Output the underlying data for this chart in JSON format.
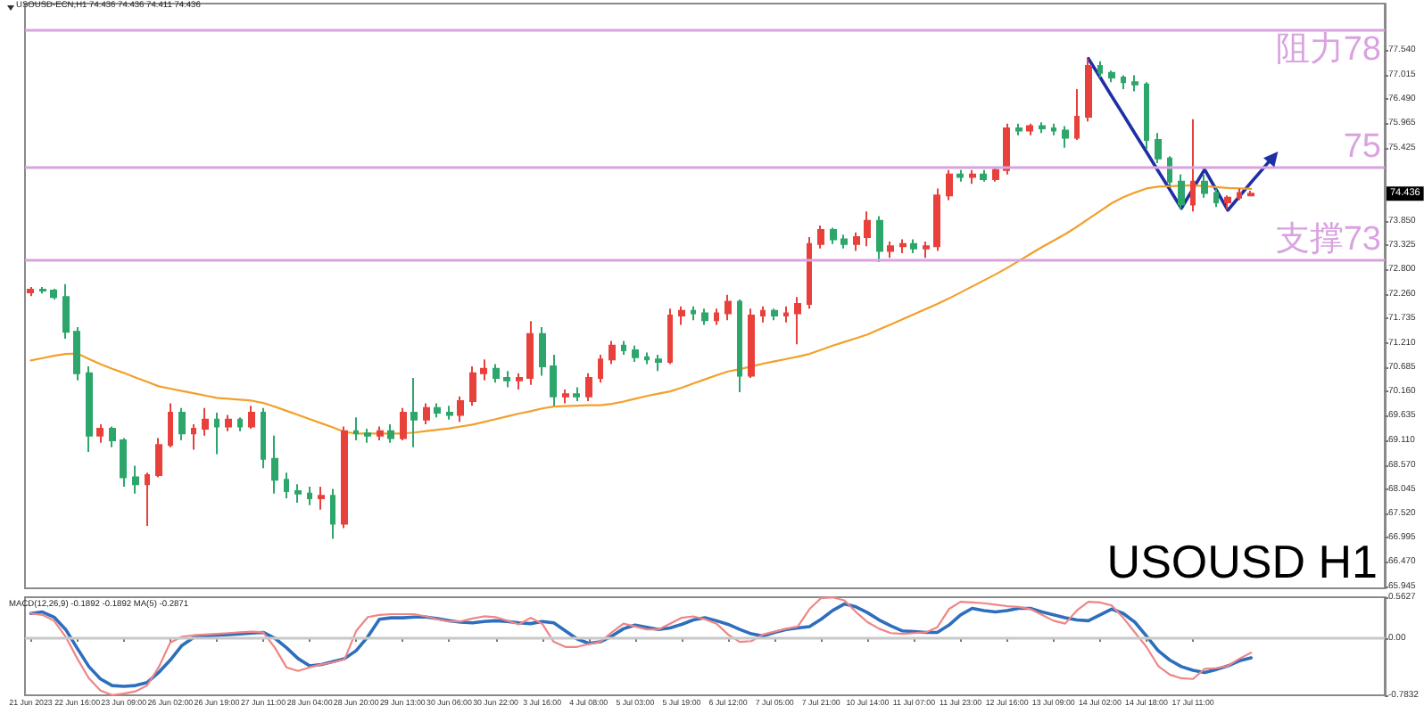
{
  "chart_data": [
    {
      "type": "candlestick",
      "title": "USOUSD H1",
      "subtitle": "USOUSD-ECN,H1 74.436 74.436 74.411 74.436",
      "categories": [
        null,
        null,
        null,
        null,
        null,
        null,
        null,
        null,
        null,
        null,
        null,
        null,
        null,
        null,
        null,
        null,
        null,
        null,
        null,
        null,
        null,
        null,
        null,
        null,
        null,
        null,
        null,
        null,
        null,
        null,
        null,
        null,
        null,
        null,
        null,
        null,
        null,
        null,
        null,
        null,
        null,
        null,
        null,
        null,
        null,
        null,
        null,
        null,
        null,
        null,
        null,
        null,
        null,
        null,
        null,
        null,
        null,
        null,
        null,
        null,
        null,
        null,
        null,
        null,
        null,
        null,
        null,
        null,
        null,
        null,
        null,
        null,
        null,
        null,
        null,
        null,
        null,
        null,
        null,
        null,
        null,
        null,
        null,
        null,
        null,
        null,
        null,
        null,
        null,
        null,
        null,
        null,
        null,
        null,
        null,
        null,
        null,
        null,
        null,
        null,
        null,
        null,
        null,
        null,
        null,
        null,
        null,
        null,
        null,
        null,
        null,
        null,
        null,
        null,
        null,
        null,
        null
      ],
      "ohlc": [
        [
          72.3,
          72.42,
          72.22,
          72.36
        ],
        [
          72.36,
          72.42,
          72.28,
          72.34
        ],
        [
          72.34,
          72.38,
          72.15,
          72.2
        ],
        [
          72.2,
          72.48,
          71.3,
          71.45
        ],
        [
          71.45,
          71.55,
          70.4,
          70.55
        ],
        [
          70.55,
          70.7,
          68.85,
          69.2
        ],
        [
          69.2,
          69.45,
          69.05,
          69.35
        ],
        [
          69.35,
          69.4,
          68.95,
          69.1
        ],
        [
          69.1,
          69.15,
          68.1,
          68.3
        ],
        [
          68.3,
          68.55,
          67.95,
          68.15
        ],
        [
          68.15,
          68.4,
          67.25,
          68.35
        ],
        [
          68.35,
          69.15,
          68.3,
          69.0
        ],
        [
          69.0,
          69.9,
          68.95,
          69.7
        ],
        [
          69.7,
          69.8,
          69.1,
          69.25
        ],
        [
          69.25,
          69.45,
          68.9,
          69.35
        ],
        [
          69.35,
          69.8,
          69.2,
          69.55
        ],
        [
          69.55,
          69.7,
          68.8,
          69.4
        ],
        [
          69.4,
          69.65,
          69.3,
          69.55
        ],
        [
          69.55,
          69.6,
          69.3,
          69.4
        ],
        [
          69.4,
          69.85,
          69.35,
          69.7
        ],
        [
          69.7,
          69.8,
          68.5,
          68.7
        ],
        [
          68.7,
          69.2,
          67.95,
          68.25
        ],
        [
          68.25,
          68.4,
          67.85,
          68.0
        ],
        [
          68.0,
          68.15,
          67.75,
          67.95
        ],
        [
          67.95,
          68.1,
          67.7,
          67.85
        ],
        [
          67.85,
          68.1,
          67.6,
          67.9
        ],
        [
          67.9,
          68.05,
          66.97,
          67.3
        ],
        [
          67.3,
          69.4,
          67.2,
          69.3
        ],
        [
          69.3,
          69.6,
          69.1,
          69.25
        ],
        [
          69.25,
          69.35,
          69.05,
          69.2
        ],
        [
          69.2,
          69.4,
          69.1,
          69.3
        ],
        [
          69.3,
          69.45,
          69.05,
          69.15
        ],
        [
          69.15,
          69.8,
          69.1,
          69.7
        ],
        [
          69.7,
          70.45,
          68.95,
          69.55
        ],
        [
          69.55,
          69.9,
          69.45,
          69.8
        ],
        [
          69.8,
          69.9,
          69.6,
          69.7
        ],
        [
          69.7,
          69.85,
          69.55,
          69.65
        ],
        [
          69.65,
          70.05,
          69.5,
          69.95
        ],
        [
          69.95,
          70.7,
          69.85,
          70.55
        ],
        [
          70.55,
          70.85,
          70.4,
          70.65
        ],
        [
          70.65,
          70.75,
          70.35,
          70.45
        ],
        [
          70.45,
          70.6,
          70.25,
          70.4
        ],
        [
          70.4,
          70.55,
          70.2,
          70.45
        ],
        [
          70.45,
          71.68,
          70.3,
          71.4
        ],
        [
          71.4,
          71.55,
          70.5,
          70.7
        ],
        [
          70.7,
          70.95,
          69.85,
          70.05
        ],
        [
          70.05,
          70.2,
          69.9,
          70.1
        ],
        [
          70.1,
          70.25,
          69.95,
          70.05
        ],
        [
          70.05,
          70.55,
          69.95,
          70.45
        ],
        [
          70.45,
          70.95,
          70.35,
          70.85
        ],
        [
          70.85,
          71.25,
          70.75,
          71.15
        ],
        [
          71.15,
          71.25,
          70.95,
          71.05
        ],
        [
          71.05,
          71.15,
          70.8,
          70.9
        ],
        [
          70.9,
          71.0,
          70.75,
          70.85
        ],
        [
          70.85,
          70.95,
          70.6,
          70.8
        ],
        [
          70.8,
          71.95,
          70.75,
          71.8
        ],
        [
          71.8,
          72.0,
          71.6,
          71.9
        ],
        [
          71.9,
          72.0,
          71.7,
          71.85
        ],
        [
          71.85,
          71.95,
          71.6,
          71.7
        ],
        [
          71.7,
          71.95,
          71.6,
          71.85
        ],
        [
          71.85,
          72.25,
          71.7,
          72.1
        ],
        [
          72.1,
          72.15,
          70.14,
          70.5
        ],
        [
          70.5,
          71.95,
          70.45,
          71.8
        ],
        [
          71.8,
          72.0,
          71.65,
          71.9
        ],
        [
          71.9,
          71.95,
          71.7,
          71.8
        ],
        [
          71.8,
          72.0,
          71.65,
          71.85
        ],
        [
          71.85,
          72.2,
          71.18,
          72.05
        ],
        [
          72.05,
          73.5,
          71.95,
          73.35
        ],
        [
          73.35,
          73.75,
          73.25,
          73.65
        ],
        [
          73.65,
          73.7,
          73.35,
          73.45
        ],
        [
          73.45,
          73.55,
          73.25,
          73.35
        ],
        [
          73.35,
          73.6,
          73.2,
          73.5
        ],
        [
          73.5,
          74.05,
          73.3,
          73.85
        ],
        [
          73.85,
          73.95,
          72.96,
          73.2
        ],
        [
          73.2,
          73.4,
          73.05,
          73.3
        ],
        [
          73.3,
          73.45,
          73.15,
          73.35
        ],
        [
          73.35,
          73.45,
          73.15,
          73.25
        ],
        [
          73.25,
          73.4,
          73.05,
          73.3
        ],
        [
          73.3,
          74.55,
          73.2,
          74.4
        ],
        [
          74.4,
          74.95,
          74.3,
          74.85
        ],
        [
          74.85,
          74.95,
          74.7,
          74.8
        ],
        [
          74.8,
          74.95,
          74.65,
          74.85
        ],
        [
          74.85,
          74.95,
          74.7,
          74.75
        ],
        [
          74.75,
          75.0,
          74.7,
          74.95
        ],
        [
          74.95,
          75.95,
          74.85,
          75.85
        ],
        [
          75.85,
          75.95,
          75.7,
          75.8
        ],
        [
          75.8,
          75.95,
          75.7,
          75.9
        ],
        [
          75.9,
          75.98,
          75.75,
          75.85
        ],
        [
          75.85,
          75.95,
          75.7,
          75.8
        ],
        [
          75.8,
          75.9,
          75.43,
          75.65
        ],
        [
          75.65,
          76.7,
          75.6,
          76.1
        ],
        [
          76.1,
          77.36,
          76.0,
          77.2
        ],
        [
          77.2,
          77.3,
          76.95,
          77.05
        ],
        [
          77.05,
          77.1,
          76.85,
          76.95
        ],
        [
          76.95,
          77.0,
          76.7,
          76.85
        ],
        [
          76.85,
          77.0,
          76.65,
          76.8
        ],
        [
          76.8,
          76.85,
          75.4,
          75.6
        ],
        [
          75.6,
          75.75,
          75.1,
          75.2
        ],
        [
          75.2,
          75.25,
          74.6,
          74.7
        ],
        [
          74.7,
          74.85,
          74.1,
          74.2
        ],
        [
          74.2,
          76.05,
          74.05,
          74.7
        ],
        [
          74.7,
          74.85,
          74.35,
          74.45
        ],
        [
          74.45,
          74.55,
          74.15,
          74.25
        ],
        [
          74.25,
          74.4,
          74.1,
          74.35
        ],
        [
          74.35,
          74.55,
          74.3,
          74.45
        ],
        [
          74.4,
          74.5,
          74.38,
          74.436
        ],
        null,
        null,
        null,
        null,
        null,
        null,
        null,
        null,
        null,
        null,
        null
      ],
      "colors": [
        "#e8413c",
        "#2ca66b",
        "#2ca66b",
        "#2ca66b",
        "#2ca66b",
        "#2ca66b",
        "#e8413c",
        "#2ca66b",
        "#2ca66b",
        "#2ca66b",
        "#e8413c",
        "#e8413c",
        "#e8413c",
        "#2ca66b",
        "#e8413c",
        "#e8413c",
        "#2ca66b",
        "#e8413c",
        "#2ca66b",
        "#e8413c",
        "#2ca66b",
        "#2ca66b",
        "#2ca66b",
        "#2ca66b",
        "#2ca66b",
        "#e8413c",
        "#2ca66b",
        "#e8413c",
        "#2ca66b",
        "#2ca66b",
        "#e8413c",
        "#2ca66b",
        "#e8413c",
        "#2ca66b",
        "#e8413c",
        "#2ca66b",
        "#2ca66b",
        "#e8413c",
        "#e8413c",
        "#e8413c",
        "#2ca66b",
        "#2ca66b",
        "#e8413c",
        "#e8413c",
        "#2ca66b",
        "#2ca66b",
        "#e8413c",
        "#2ca66b",
        "#e8413c",
        "#e8413c",
        "#e8413c",
        "#2ca66b",
        "#2ca66b",
        "#2ca66b",
        "#2ca66b",
        "#e8413c",
        "#e8413c",
        "#2ca66b",
        "#2ca66b",
        "#e8413c",
        "#e8413c",
        "#2ca66b",
        "#e8413c",
        "#e8413c",
        "#2ca66b",
        "#e8413c",
        "#e8413c",
        "#e8413c",
        "#e8413c",
        "#2ca66b",
        "#2ca66b",
        "#e8413c",
        "#e8413c",
        "#2ca66b",
        "#e8413c",
        "#e8413c",
        "#2ca66b",
        "#e8413c",
        "#e8413c",
        "#e8413c",
        "#2ca66b",
        "#e8413c",
        "#2ca66b",
        "#e8413c",
        "#e8413c",
        "#2ca66b",
        "#e8413c",
        "#2ca66b",
        "#2ca66b",
        "#2ca66b",
        "#e8413c",
        "#e8413c",
        "#2ca66b",
        "#2ca66b",
        "#2ca66b",
        "#2ca66b",
        "#2ca66b",
        "#2ca66b",
        "#2ca66b",
        "#2ca66b",
        "#e8413c",
        "#2ca66b",
        "#2ca66b",
        "#e8413c",
        "#e8413c",
        "#e8413c",
        null,
        null,
        null,
        null,
        null,
        null,
        null,
        null,
        null,
        null,
        null
      ],
      "series": [
        {
          "type": "line",
          "color": "#1f2fa6",
          "values": [
            null,
            null,
            null,
            null,
            null,
            null,
            null,
            null,
            null,
            null,
            null,
            null,
            null,
            null,
            null,
            null,
            null,
            null,
            null,
            null,
            null,
            null,
            null,
            null,
            null,
            null,
            null,
            null,
            null,
            null,
            null,
            null,
            null,
            null,
            null,
            null,
            null,
            null,
            null,
            null,
            null,
            null,
            null,
            null,
            null,
            null,
            null,
            null,
            null,
            null,
            null,
            null,
            null,
            null,
            null,
            null,
            null,
            null,
            null,
            null,
            null,
            null,
            null,
            null,
            null,
            null,
            null,
            null,
            null,
            null,
            null,
            null,
            null,
            null,
            null,
            null,
            null,
            null,
            null,
            null,
            null,
            null,
            null,
            null,
            null,
            null,
            null,
            null,
            null,
            null,
            null,
            77.36,
            76.96,
            76.55,
            76.15,
            75.74,
            75.34,
            74.93,
            74.53,
            74.12,
            74.54,
            74.96,
            74.52,
            74.08,
            74.38,
            74.68,
            74.97,
            75.27,
            null,
            null,
            null,
            null,
            null,
            null,
            null,
            null,
            null
          ]
        },
        {
          "type": "line",
          "color": "#f2a02a",
          "values": [
            70.83,
            70.88,
            70.93,
            70.97,
            70.98,
            70.86,
            70.75,
            70.65,
            70.56,
            70.46,
            70.37,
            70.27,
            70.22,
            70.17,
            70.12,
            70.07,
            70.02,
            70.0,
            69.98,
            69.96,
            69.91,
            69.83,
            69.74,
            69.65,
            69.56,
            69.47,
            69.38,
            69.28,
            69.25,
            69.25,
            69.25,
            69.25,
            69.25,
            69.27,
            69.3,
            69.33,
            69.36,
            69.4,
            69.44,
            69.5,
            69.56,
            69.62,
            69.68,
            69.73,
            69.79,
            69.83,
            69.84,
            69.85,
            69.86,
            69.86,
            69.89,
            69.94,
            70.0,
            70.06,
            70.11,
            70.16,
            70.24,
            70.33,
            70.42,
            70.51,
            70.59,
            70.64,
            70.7,
            70.76,
            70.81,
            70.86,
            70.91,
            70.97,
            71.06,
            71.15,
            71.23,
            71.31,
            71.39,
            71.5,
            71.61,
            71.72,
            71.83,
            71.94,
            72.05,
            72.17,
            72.3,
            72.43,
            72.56,
            72.69,
            72.83,
            72.98,
            73.13,
            73.28,
            73.42,
            73.56,
            73.72,
            73.89,
            74.06,
            74.23,
            74.36,
            74.46,
            74.55,
            74.59,
            74.6,
            74.61,
            74.62,
            74.6,
            74.58,
            74.56,
            74.55,
            74.54,
            null,
            null,
            null,
            null,
            null,
            null,
            null,
            null,
            null,
            null,
            null
          ]
        }
      ],
      "ylim": [
        65.9,
        78.55
      ],
      "yticks": [
        65.945,
        {
          "value": 66.47,
          "label": "66.470"
        },
        66.995,
        {
          "value": 67.52,
          "label": "67.520"
        },
        68.045,
        {
          "value": 68.57,
          "label": "68.570"
        },
        {
          "value": 69.11,
          "label": "69.110"
        },
        69.635,
        {
          "value": 70.16,
          "label": "70.160"
        },
        70.685,
        {
          "value": 71.21,
          "label": "71.210"
        },
        71.735,
        {
          "value": 72.26,
          "label": "72.260"
        },
        {
          "value": 72.8,
          "label": "72.800"
        },
        73.325,
        {
          "value": 73.85,
          "label": "73.850"
        },
        75.425,
        75.965,
        {
          "value": 76.49,
          "label": "76.490"
        },
        77.015,
        {
          "value": 77.54,
          "label": "77.540"
        }
      ],
      "ref_lines": [
        {
          "axis": "y",
          "value": 78,
          "label": "阻力78",
          "color": "#d9a3e0"
        },
        {
          "axis": "y",
          "value": 75,
          "label": "75",
          "color": "#d9a3e0"
        },
        {
          "axis": "y",
          "value": 73,
          "label": "支撑73",
          "color": "#d9a3e0"
        }
      ],
      "annotations": [
        {
          "text": "74.436",
          "y": 74.436
        }
      ],
      "tick_labels": "y",
      "marker": "none"
    },
    {
      "type": "line",
      "title": "MACD(12,26,9) -0.1892 -0.1892 MA(5) -0.2871",
      "categories": [
        "21 Jun 2023",
        null,
        null,
        null,
        "22 Jun 16:00",
        null,
        null,
        null,
        "23 Jun 09:00",
        null,
        null,
        null,
        "26 Jun 02:00",
        null,
        null,
        null,
        "26 Jun 19:00",
        null,
        null,
        null,
        "27 Jun 11:00",
        null,
        null,
        null,
        "28 Jun 04:00",
        null,
        null,
        null,
        "28 Jun 20:00",
        null,
        null,
        null,
        "29 Jun 13:00",
        null,
        null,
        null,
        "30 Jun 06:00",
        null,
        null,
        null,
        "30 Jun 22:00",
        null,
        null,
        null,
        "3 Jul 16:00",
        null,
        null,
        null,
        "4 Jul 08:00",
        null,
        null,
        null,
        "5 Jul 03:00",
        null,
        null,
        null,
        "5 Jul 19:00",
        null,
        null,
        null,
        "6 Jul 12:00",
        null,
        null,
        null,
        "7 Jul 05:00",
        null,
        null,
        null,
        "7 Jul 21:00",
        null,
        null,
        null,
        "10 Jul 14:00",
        null,
        null,
        null,
        "11 Jul 07:00",
        null,
        null,
        null,
        "11 Jul 23:00",
        null,
        null,
        null,
        "12 Jul 16:00",
        null,
        null,
        null,
        "13 Jul 09:00",
        null,
        null,
        null,
        "14 Jul 02:00",
        null,
        null,
        null,
        "14 Jul 18:00",
        null,
        null,
        null,
        "17 Jul 11:00",
        null,
        null,
        null,
        null,
        null,
        null,
        null,
        null,
        null,
        null,
        null,
        null,
        null,
        null,
        null,
        null
      ],
      "series": [
        {
          "color": "#2d6ebd",
          "values": [
            0.34,
            0.36,
            0.29,
            0.12,
            -0.14,
            -0.39,
            -0.56,
            -0.65,
            -0.66,
            -0.65,
            -0.61,
            -0.47,
            -0.3,
            -0.1,
            0.01,
            0.03,
            0.04,
            0.05,
            0.06,
            0.07,
            0.08,
            0.0,
            -0.13,
            -0.28,
            -0.38,
            -0.36,
            -0.32,
            -0.28,
            -0.17,
            0.02,
            0.26,
            0.28,
            0.28,
            0.29,
            0.29,
            0.27,
            0.24,
            0.22,
            0.21,
            0.23,
            0.24,
            0.23,
            0.21,
            0.2,
            0.23,
            0.21,
            0.1,
            -0.01,
            -0.07,
            -0.05,
            0.03,
            0.13,
            0.18,
            0.15,
            0.12,
            0.14,
            0.19,
            0.25,
            0.28,
            0.24,
            0.19,
            0.12,
            0.06,
            0.03,
            0.08,
            0.12,
            0.14,
            0.16,
            0.26,
            0.38,
            0.47,
            0.43,
            0.35,
            0.25,
            0.17,
            0.1,
            0.09,
            0.08,
            0.08,
            0.18,
            0.32,
            0.41,
            0.38,
            0.36,
            0.38,
            0.41,
            0.41,
            0.36,
            0.32,
            0.28,
            0.25,
            0.24,
            0.32,
            0.4,
            0.34,
            0.22,
            0.03,
            -0.17,
            -0.3,
            -0.39,
            -0.44,
            -0.47,
            -0.43,
            -0.38,
            -0.31,
            -0.27,
            null,
            null,
            null,
            null,
            null,
            null,
            null,
            null,
            null,
            null,
            null
          ]
        },
        {
          "color": "#f08585",
          "values": [
            0.34,
            0.32,
            0.24,
            0.02,
            -0.28,
            -0.55,
            -0.72,
            -0.78,
            -0.76,
            -0.73,
            -0.65,
            -0.4,
            -0.06,
            0.02,
            0.04,
            0.05,
            0.06,
            0.07,
            0.08,
            0.09,
            0.08,
            -0.13,
            -0.4,
            -0.45,
            -0.4,
            -0.36,
            -0.33,
            -0.29,
            0.1,
            0.29,
            0.32,
            0.33,
            0.33,
            0.33,
            0.3,
            0.26,
            0.23,
            0.23,
            0.27,
            0.3,
            0.29,
            0.24,
            0.19,
            0.28,
            0.2,
            -0.05,
            -0.12,
            -0.12,
            -0.08,
            -0.05,
            0.08,
            0.2,
            0.16,
            0.12,
            0.12,
            0.2,
            0.28,
            0.3,
            0.26,
            0.2,
            0.05,
            -0.05,
            -0.04,
            0.05,
            0.09,
            0.13,
            0.16,
            0.4,
            0.55,
            0.56,
            0.52,
            0.36,
            0.22,
            0.13,
            0.07,
            0.06,
            0.07,
            0.08,
            0.15,
            0.4,
            0.5,
            0.49,
            0.48,
            0.46,
            0.44,
            0.43,
            0.4,
            0.32,
            0.24,
            0.2,
            0.38,
            0.5,
            0.49,
            0.45,
            0.28,
            0.08,
            -0.12,
            -0.38,
            -0.5,
            -0.55,
            -0.56,
            -0.42,
            -0.41,
            -0.38,
            -0.28,
            -0.2,
            null,
            null,
            null,
            null,
            null,
            null,
            null,
            null,
            null,
            null,
            null
          ]
        }
      ],
      "ylim": [
        -0.7832,
        0.5627
      ],
      "yticks": [
        -0.7832,
        {
          "value": 0,
          "label": "0.00"
        },
        0.5627
      ],
      "ref_lines": [
        {
          "axis": "y",
          "value": 0,
          "color": "#c8c8c8"
        }
      ],
      "marker": "none"
    }
  ]
}
